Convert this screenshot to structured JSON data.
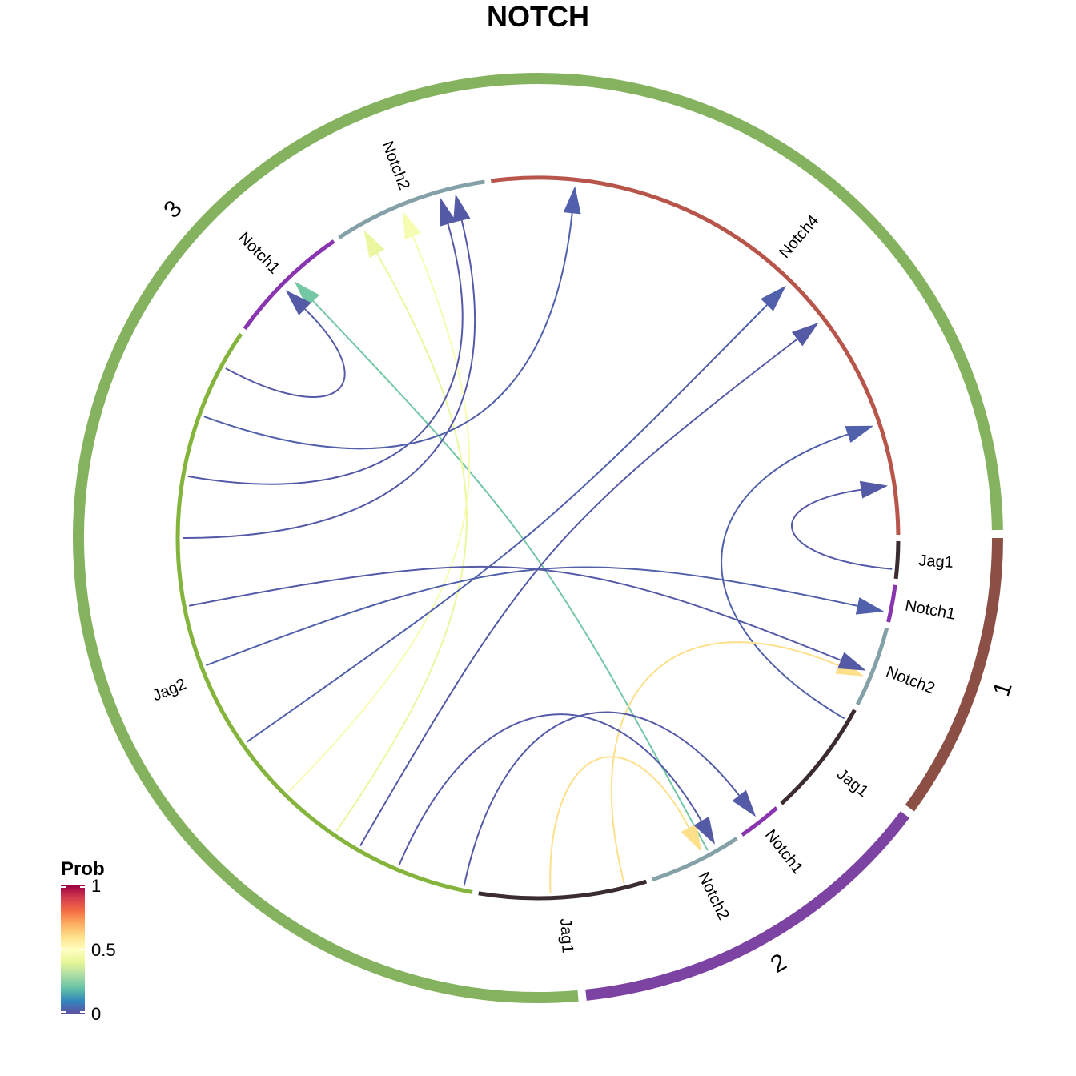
{
  "title": "NOTCH",
  "colors": {
    "group_3": "#84b25f",
    "group_1": "#8b4f45",
    "group_2": "#7c43a3"
  },
  "groups": [
    {
      "id": "group_1",
      "label": "1",
      "color": "#8b4f45",
      "start": 0,
      "end": 36
    },
    {
      "id": "group_2",
      "label": "2",
      "color": "#7c43a3",
      "start": 37,
      "end": 84
    },
    {
      "id": "group_3",
      "label": "3",
      "color": "#84b25f",
      "start": 85,
      "end": 359
    }
  ],
  "sectors": [
    {
      "id": "s1",
      "label": "Jag1",
      "color": "#3b2c30",
      "start": 0.5,
      "end": 6.5
    },
    {
      "id": "s2",
      "label": "Notch1",
      "color": "#8a35b0",
      "start": 7.5,
      "end": 13.5
    },
    {
      "id": "s3",
      "label": "Notch2",
      "color": "#84a1a8",
      "start": 14.5,
      "end": 27.5
    },
    {
      "id": "s4",
      "label": "Jag1",
      "color": "#3b2c30",
      "start": 28.5,
      "end": 47.5
    },
    {
      "id": "s5",
      "label": "Notch1",
      "color": "#8a35b0",
      "start": 48.5,
      "end": 55.5
    },
    {
      "id": "s6",
      "label": "Notch2",
      "color": "#84a1a8",
      "start": 56.5,
      "end": 71.5
    },
    {
      "id": "s7",
      "label": "Jag1",
      "color": "#3b2c30",
      "start": 72.5,
      "end": 99.5
    },
    {
      "id": "s8",
      "label": "Jag2",
      "color": "#84b43c",
      "start": 100.5,
      "end": 214.5
    },
    {
      "id": "s9",
      "label": "Notch1",
      "color": "#8a35b0",
      "start": 215.5,
      "end": 235.5
    },
    {
      "id": "s10",
      "label": "Notch2",
      "color": "#84a1a8",
      "start": 236.5,
      "end": 261.5
    },
    {
      "id": "s11",
      "label": "Notch4",
      "color": "#b8554a",
      "start": 262.5,
      "end": 359.5
    }
  ],
  "links": [
    {
      "from": 5,
      "to": 351.5,
      "prob": 0.02
    },
    {
      "from": 30.5,
      "to": 341.5,
      "prob": 0.03
    },
    {
      "from": 61.5,
      "to": 226.5,
      "prob": 0.22
    },
    {
      "from": 76,
      "to": 23,
      "prob": 0.6
    },
    {
      "from": 88,
      "to": 62.5,
      "prob": 0.6
    },
    {
      "from": 102,
      "to": 52,
      "prob": 0.02
    },
    {
      "from": 113,
      "to": 60,
      "prob": 0.02
    },
    {
      "from": 120,
      "to": 322.5,
      "prob": 0.02
    },
    {
      "from": 124.5,
      "to": 240.5,
      "prob": 0.42
    },
    {
      "from": 134.5,
      "to": 247.5,
      "prob": 0.47
    },
    {
      "from": 145,
      "to": 314.5,
      "prob": 0.03
    },
    {
      "from": 159,
      "to": 12,
      "prob": 0.03
    },
    {
      "from": 169,
      "to": 22,
      "prob": 0.02
    },
    {
      "from": 180,
      "to": 256.5,
      "prob": 0.02
    },
    {
      "from": 190,
      "to": 254,
      "prob": 0.02
    },
    {
      "from": 200,
      "to": 276,
      "prob": 0.03
    },
    {
      "from": 208.5,
      "to": 224.5,
      "prob": 0.02
    }
  ],
  "legend": {
    "title": "Prob",
    "ticks": [
      {
        "value": 1,
        "label": "1"
      },
      {
        "value": 0.5,
        "label": "0.5"
      },
      {
        "value": 0,
        "label": "0"
      }
    ]
  }
}
